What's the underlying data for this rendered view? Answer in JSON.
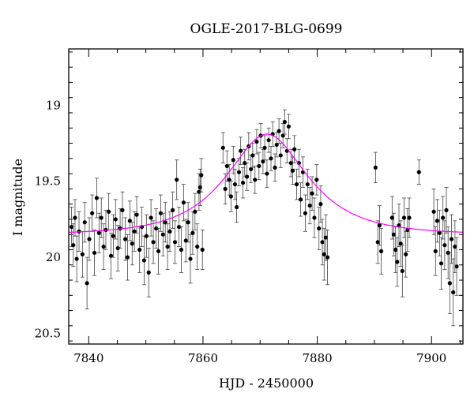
{
  "chart_data": {
    "type": "scatter",
    "title": "OGLE-2017-BLG-0699",
    "xlabel": "HJD - 2450000",
    "ylabel": "I magnitude",
    "xlim": [
      7836.5,
      7905.5
    ],
    "ylim": [
      20.57,
      18.63
    ],
    "y_inverted": true,
    "x_ticks": [
      7840,
      7860,
      7880,
      7900
    ],
    "x_tick_labels": [
      "7840",
      "7860",
      "7880",
      "7900"
    ],
    "y_ticks": [
      19,
      19.5,
      20,
      20.5
    ],
    "y_tick_labels": [
      "19",
      "19.5",
      "20",
      "20.5"
    ],
    "grid": false,
    "colors": {
      "points": "#000000",
      "model": "#ff00ff"
    },
    "model": {
      "kind": "microlensing-fit",
      "t0": 7871.2,
      "u0": 0.62,
      "tE": 11.0,
      "baseline": 19.85
    },
    "series": [
      {
        "values": [
          {
            "x": 7837.0,
            "y": 19.8,
            "err": 0.13
          },
          {
            "x": 7837.3,
            "y": 19.92,
            "err": 0.14
          },
          {
            "x": 7837.6,
            "y": 19.74,
            "err": 0.12
          },
          {
            "x": 7837.9,
            "y": 20.01,
            "err": 0.15
          },
          {
            "x": 7838.3,
            "y": 19.83,
            "err": 0.13
          },
          {
            "x": 7838.9,
            "y": 19.98,
            "err": 0.15
          },
          {
            "x": 7839.3,
            "y": 19.77,
            "err": 0.13
          },
          {
            "x": 7839.7,
            "y": 20.17,
            "err": 0.17
          },
          {
            "x": 7840.1,
            "y": 19.88,
            "err": 0.14
          },
          {
            "x": 7840.6,
            "y": 19.71,
            "err": 0.12
          },
          {
            "x": 7841.0,
            "y": 19.97,
            "err": 0.15
          },
          {
            "x": 7841.4,
            "y": 19.61,
            "err": 0.13
          },
          {
            "x": 7841.8,
            "y": 19.84,
            "err": 0.13
          },
          {
            "x": 7842.2,
            "y": 19.74,
            "err": 0.13
          },
          {
            "x": 7842.6,
            "y": 19.93,
            "err": 0.15
          },
          {
            "x": 7843.0,
            "y": 19.82,
            "err": 0.13
          },
          {
            "x": 7843.5,
            "y": 19.7,
            "err": 0.12
          },
          {
            "x": 7843.9,
            "y": 19.99,
            "err": 0.15
          },
          {
            "x": 7844.3,
            "y": 19.86,
            "err": 0.14
          },
          {
            "x": 7844.7,
            "y": 19.75,
            "err": 0.13
          },
          {
            "x": 7845.1,
            "y": 19.94,
            "err": 0.15
          },
          {
            "x": 7845.5,
            "y": 19.81,
            "err": 0.13
          },
          {
            "x": 7845.9,
            "y": 19.69,
            "err": 0.12
          },
          {
            "x": 7846.4,
            "y": 19.88,
            "err": 0.14
          },
          {
            "x": 7846.8,
            "y": 20.0,
            "err": 0.15
          },
          {
            "x": 7847.2,
            "y": 19.76,
            "err": 0.13
          },
          {
            "x": 7847.6,
            "y": 19.91,
            "err": 0.14
          },
          {
            "x": 7848.0,
            "y": 19.83,
            "err": 0.13
          },
          {
            "x": 7848.4,
            "y": 19.72,
            "err": 0.12
          },
          {
            "x": 7848.9,
            "y": 19.95,
            "err": 0.15
          },
          {
            "x": 7849.3,
            "y": 19.8,
            "err": 0.13
          },
          {
            "x": 7849.7,
            "y": 20.02,
            "err": 0.16
          },
          {
            "x": 7850.1,
            "y": 19.86,
            "err": 0.14
          },
          {
            "x": 7850.5,
            "y": 20.1,
            "err": 0.16
          },
          {
            "x": 7850.9,
            "y": 19.74,
            "err": 0.12
          },
          {
            "x": 7851.3,
            "y": 19.9,
            "err": 0.14
          },
          {
            "x": 7851.8,
            "y": 19.81,
            "err": 0.13
          },
          {
            "x": 7852.2,
            "y": 19.96,
            "err": 0.15
          },
          {
            "x": 7852.6,
            "y": 19.71,
            "err": 0.12
          },
          {
            "x": 7853.0,
            "y": 19.85,
            "err": 0.14
          },
          {
            "x": 7853.4,
            "y": 19.77,
            "err": 0.13
          },
          {
            "x": 7853.8,
            "y": 19.93,
            "err": 0.15
          },
          {
            "x": 7854.2,
            "y": 19.83,
            "err": 0.13
          },
          {
            "x": 7854.7,
            "y": 19.69,
            "err": 0.12
          },
          {
            "x": 7855.1,
            "y": 19.9,
            "err": 0.14
          },
          {
            "x": 7855.4,
            "y": 19.49,
            "err": 0.13
          },
          {
            "x": 7855.8,
            "y": 19.8,
            "err": 0.13
          },
          {
            "x": 7856.2,
            "y": 19.95,
            "err": 0.15
          },
          {
            "x": 7856.6,
            "y": 19.64,
            "err": 0.12
          },
          {
            "x": 7857.0,
            "y": 19.89,
            "err": 0.14
          },
          {
            "x": 7857.4,
            "y": 19.77,
            "err": 0.13
          },
          {
            "x": 7857.8,
            "y": 20.01,
            "err": 0.16
          },
          {
            "x": 7858.2,
            "y": 19.84,
            "err": 0.14
          },
          {
            "x": 7858.6,
            "y": 19.7,
            "err": 0.12
          },
          {
            "x": 7859.0,
            "y": 19.93,
            "err": 0.15
          },
          {
            "x": 7859.3,
            "y": 19.57,
            "err": 0.12
          },
          {
            "x": 7859.5,
            "y": 19.54,
            "err": 0.12
          },
          {
            "x": 7859.7,
            "y": 19.46,
            "err": 0.11
          },
          {
            "x": 7859.9,
            "y": 19.95,
            "err": 0.13
          },
          {
            "x": 7863.5,
            "y": 19.28,
            "err": 0.1
          },
          {
            "x": 7863.9,
            "y": 19.55,
            "err": 0.1
          },
          {
            "x": 7864.2,
            "y": 19.4,
            "err": 0.1
          },
          {
            "x": 7864.6,
            "y": 19.49,
            "err": 0.1
          },
          {
            "x": 7864.9,
            "y": 19.6,
            "err": 0.1
          },
          {
            "x": 7865.3,
            "y": 19.36,
            "err": 0.09
          },
          {
            "x": 7865.6,
            "y": 19.52,
            "err": 0.1
          },
          {
            "x": 7865.9,
            "y": 19.67,
            "err": 0.1
          },
          {
            "x": 7866.3,
            "y": 19.44,
            "err": 0.09
          },
          {
            "x": 7866.6,
            "y": 19.3,
            "err": 0.09
          },
          {
            "x": 7867.0,
            "y": 19.51,
            "err": 0.1
          },
          {
            "x": 7867.3,
            "y": 19.38,
            "err": 0.09
          },
          {
            "x": 7867.7,
            "y": 19.47,
            "err": 0.09
          },
          {
            "x": 7868.0,
            "y": 19.27,
            "err": 0.09
          },
          {
            "x": 7868.4,
            "y": 19.42,
            "err": 0.09
          },
          {
            "x": 7868.7,
            "y": 19.33,
            "err": 0.08
          },
          {
            "x": 7869.1,
            "y": 19.49,
            "err": 0.09
          },
          {
            "x": 7869.4,
            "y": 19.24,
            "err": 0.08
          },
          {
            "x": 7869.8,
            "y": 19.4,
            "err": 0.09
          },
          {
            "x": 7870.1,
            "y": 19.2,
            "err": 0.08
          },
          {
            "x": 7870.5,
            "y": 19.37,
            "err": 0.08
          },
          {
            "x": 7870.8,
            "y": 19.28,
            "err": 0.08
          },
          {
            "x": 7871.2,
            "y": 19.45,
            "err": 0.09
          },
          {
            "x": 7871.5,
            "y": 19.23,
            "err": 0.08
          },
          {
            "x": 7871.9,
            "y": 19.35,
            "err": 0.08
          },
          {
            "x": 7872.2,
            "y": 19.19,
            "err": 0.08
          },
          {
            "x": 7872.6,
            "y": 19.41,
            "err": 0.09
          },
          {
            "x": 7872.9,
            "y": 19.26,
            "err": 0.08
          },
          {
            "x": 7873.3,
            "y": 19.17,
            "err": 0.08
          },
          {
            "x": 7873.6,
            "y": 19.33,
            "err": 0.08
          },
          {
            "x": 7874.0,
            "y": 19.2,
            "err": 0.08
          },
          {
            "x": 7874.3,
            "y": 19.11,
            "err": 0.08
          },
          {
            "x": 7874.7,
            "y": 19.3,
            "err": 0.08
          },
          {
            "x": 7875.0,
            "y": 19.14,
            "err": 0.08
          },
          {
            "x": 7875.4,
            "y": 19.38,
            "err": 0.09
          },
          {
            "x": 7875.7,
            "y": 19.43,
            "err": 0.09
          },
          {
            "x": 7876.0,
            "y": 19.29,
            "err": 0.09
          },
          {
            "x": 7876.4,
            "y": 19.52,
            "err": 0.1
          },
          {
            "x": 7876.8,
            "y": 19.38,
            "err": 0.09
          },
          {
            "x": 7877.1,
            "y": 19.62,
            "err": 0.11
          },
          {
            "x": 7877.5,
            "y": 19.44,
            "err": 0.1
          },
          {
            "x": 7877.9,
            "y": 19.71,
            "err": 0.12
          },
          {
            "x": 7878.3,
            "y": 19.52,
            "err": 0.1
          },
          {
            "x": 7878.7,
            "y": 19.66,
            "err": 0.12
          },
          {
            "x": 7879.1,
            "y": 19.58,
            "err": 0.11
          },
          {
            "x": 7879.5,
            "y": 19.74,
            "err": 0.13
          },
          {
            "x": 7879.9,
            "y": 19.49,
            "err": 0.1
          },
          {
            "x": 7880.3,
            "y": 19.81,
            "err": 0.14
          },
          {
            "x": 7880.6,
            "y": 19.65,
            "err": 0.12
          },
          {
            "x": 7880.9,
            "y": 19.9,
            "err": 0.15
          },
          {
            "x": 7881.2,
            "y": 19.98,
            "err": 0.17
          },
          {
            "x": 7881.5,
            "y": 19.87,
            "err": 0.15
          },
          {
            "x": 7881.8,
            "y": 20.0,
            "err": 0.18
          },
          {
            "x": 7890.2,
            "y": 19.41,
            "err": 0.1
          },
          {
            "x": 7890.6,
            "y": 19.9,
            "err": 0.14
          },
          {
            "x": 7890.9,
            "y": 19.79,
            "err": 0.13
          },
          {
            "x": 7891.2,
            "y": 19.96,
            "err": 0.15
          },
          {
            "x": 7893.1,
            "y": 19.74,
            "err": 0.14
          },
          {
            "x": 7893.4,
            "y": 19.85,
            "err": 0.14
          },
          {
            "x": 7893.7,
            "y": 19.95,
            "err": 0.15
          },
          {
            "x": 7894.0,
            "y": 20.03,
            "err": 0.16
          },
          {
            "x": 7894.3,
            "y": 19.79,
            "err": 0.14
          },
          {
            "x": 7894.6,
            "y": 19.91,
            "err": 0.15
          },
          {
            "x": 7894.9,
            "y": 20.09,
            "err": 0.17
          },
          {
            "x": 7895.2,
            "y": 19.74,
            "err": 0.13
          },
          {
            "x": 7895.5,
            "y": 19.98,
            "err": 0.15
          },
          {
            "x": 7895.8,
            "y": 19.82,
            "err": 0.14
          },
          {
            "x": 7896.1,
            "y": 19.74,
            "err": 0.13
          },
          {
            "x": 7897.8,
            "y": 19.44,
            "err": 0.08
          },
          {
            "x": 7900.4,
            "y": 19.7,
            "err": 0.15
          },
          {
            "x": 7900.7,
            "y": 19.96,
            "err": 0.16
          },
          {
            "x": 7901.0,
            "y": 19.76,
            "err": 0.14
          },
          {
            "x": 7901.4,
            "y": 19.84,
            "err": 0.15
          },
          {
            "x": 7901.7,
            "y": 20.04,
            "err": 0.17
          },
          {
            "x": 7902.0,
            "y": 19.74,
            "err": 0.14
          },
          {
            "x": 7902.3,
            "y": 19.92,
            "err": 0.16
          },
          {
            "x": 7902.6,
            "y": 19.69,
            "err": 0.15
          },
          {
            "x": 7902.9,
            "y": 19.97,
            "err": 0.17
          },
          {
            "x": 7903.2,
            "y": 20.17,
            "err": 0.2
          },
          {
            "x": 7903.5,
            "y": 19.88,
            "err": 0.16
          },
          {
            "x": 7903.8,
            "y": 20.23,
            "err": 0.22
          },
          {
            "x": 7904.1,
            "y": 19.93,
            "err": 0.17
          },
          {
            "x": 7904.4,
            "y": 20.06,
            "err": 0.19
          }
        ]
      }
    ]
  }
}
